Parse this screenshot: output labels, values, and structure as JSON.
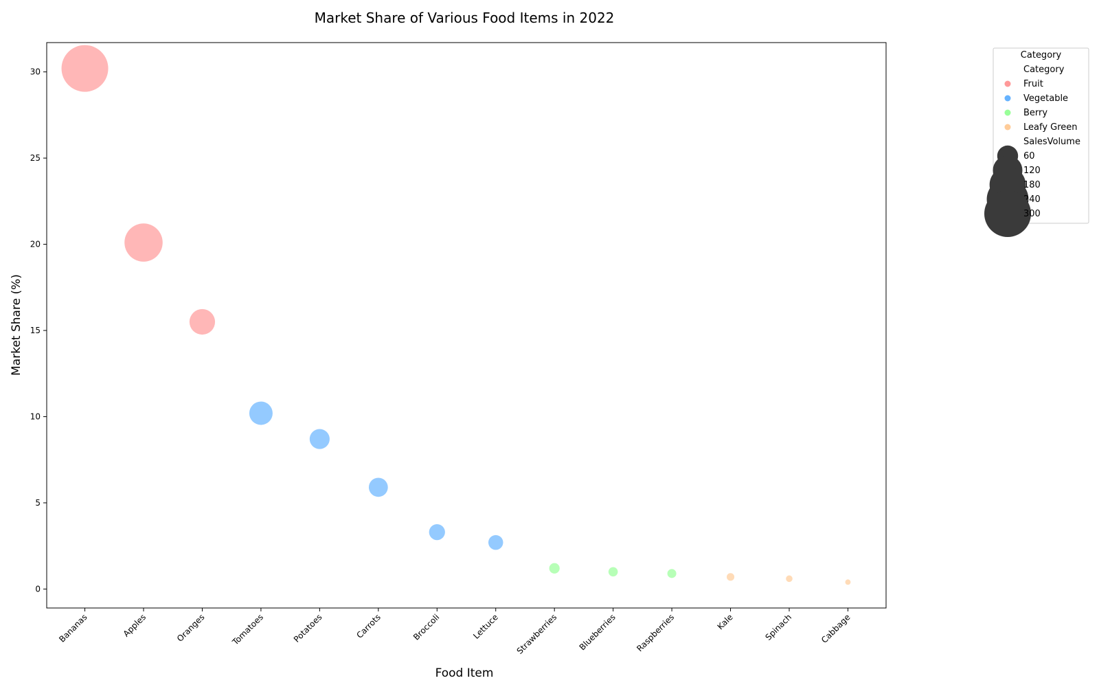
{
  "chart_data": {
    "type": "scatter",
    "title": "Market Share of Various Food Items in 2022",
    "xlabel": "Food Item",
    "ylabel": "Market Share (%)",
    "ylim": [
      -1.1,
      31.7
    ],
    "yticks": [
      0,
      5,
      10,
      15,
      20,
      25,
      30
    ],
    "grid": false,
    "categories": [
      "Bananas",
      "Apples",
      "Oranges",
      "Tomatoes",
      "Potatoes",
      "Carrots",
      "Broccoli",
      "Lettuce",
      "Strawberries",
      "Blueberries",
      "Raspberries",
      "Kale",
      "Spinach",
      "Cabbage"
    ],
    "points": [
      {
        "item": "Bananas",
        "category": "Fruit",
        "market_share": 30.2,
        "sales_volume": 300
      },
      {
        "item": "Apples",
        "category": "Fruit",
        "market_share": 20.1,
        "sales_volume": 200
      },
      {
        "item": "Oranges",
        "category": "Fruit",
        "market_share": 15.5,
        "sales_volume": 90
      },
      {
        "item": "Tomatoes",
        "category": "Vegetable",
        "market_share": 10.2,
        "sales_volume": 75
      },
      {
        "item": "Potatoes",
        "category": "Vegetable",
        "market_share": 8.7,
        "sales_volume": 55
      },
      {
        "item": "Carrots",
        "category": "Vegetable",
        "market_share": 5.9,
        "sales_volume": 50
      },
      {
        "item": "Broccoli",
        "category": "Vegetable",
        "market_share": 3.3,
        "sales_volume": 35
      },
      {
        "item": "Lettuce",
        "category": "Vegetable",
        "market_share": 2.7,
        "sales_volume": 30
      },
      {
        "item": "Strawberries",
        "category": "Berry",
        "market_share": 1.2,
        "sales_volume": 15
      },
      {
        "item": "Blueberries",
        "category": "Berry",
        "market_share": 1.0,
        "sales_volume": 12
      },
      {
        "item": "Raspberries",
        "category": "Berry",
        "market_share": 0.9,
        "sales_volume": 11
      },
      {
        "item": "Kale",
        "category": "Leafy Green",
        "market_share": 0.7,
        "sales_volume": 8
      },
      {
        "item": "Spinach",
        "category": "Leafy Green",
        "market_share": 0.6,
        "sales_volume": 6
      },
      {
        "item": "Cabbage",
        "category": "Leafy Green",
        "market_share": 0.4,
        "sales_volume": 4
      }
    ],
    "colors": {
      "Fruit": "#ff9999",
      "Vegetable": "#66b3ff",
      "Berry": "#99ff99",
      "Leafy Green": "#ffcc99"
    },
    "point_alpha": 0.7,
    "legend": {
      "placement": "outside-top-right",
      "title": "Category",
      "hue_title": "Category",
      "hue_entries": [
        "Fruit",
        "Vegetable",
        "Berry",
        "Leafy Green"
      ],
      "size_title": "SalesVolume",
      "size_entries": [
        60,
        120,
        180,
        240,
        300
      ]
    }
  }
}
